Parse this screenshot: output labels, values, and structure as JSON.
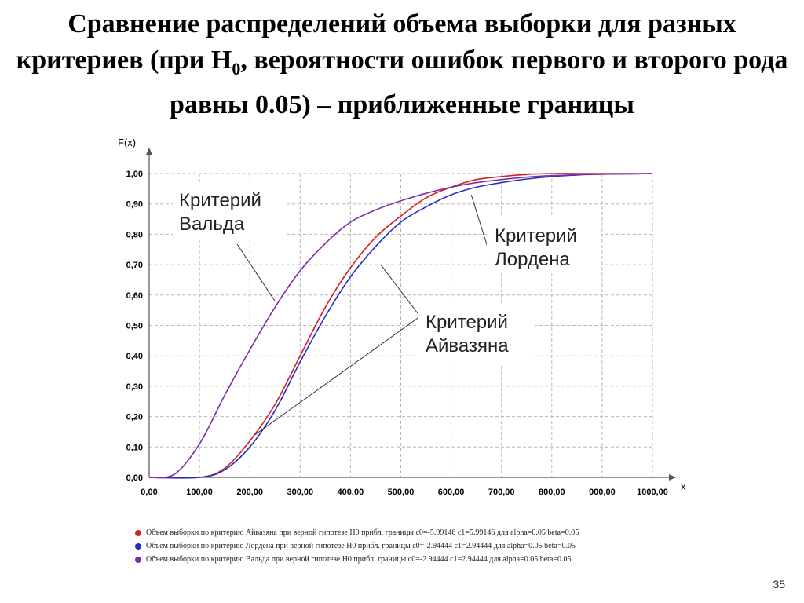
{
  "slide": {
    "title_part1": "Сравнение распределений объема выборки для разных критериев (при H",
    "title_sub": "0",
    "title_part2": ", вероятности ошибок первого и второго рода равны 0.05) – приближенные границы",
    "page_number": "35"
  },
  "chart_data": {
    "type": "line",
    "ylabel": "F(x)",
    "xlabel": "x",
    "xlim": [
      0,
      1000
    ],
    "ylim": [
      0,
      1
    ],
    "grid": true,
    "x_ticks": [
      "0,00",
      "100,00",
      "200,00",
      "300,00",
      "400,00",
      "500,00",
      "600,00",
      "700,00",
      "800,00",
      "900,00",
      "1000,00"
    ],
    "y_ticks": [
      "0,00",
      "0,10",
      "0,20",
      "0,30",
      "0,40",
      "0,50",
      "0,60",
      "0,70",
      "0,80",
      "0,90",
      "1,00"
    ],
    "series": [
      {
        "name": "Объем выборки по критерию Айвазяна при верной гипотезе H0  прибл. границы  c0=-5.99146 c1=5.99146 для  alpha=0.05 beta=0.05",
        "color": "#d62020",
        "x": [
          0,
          100,
          150,
          200,
          250,
          300,
          350,
          400,
          450,
          500,
          550,
          600,
          650,
          700,
          750,
          800,
          850,
          900,
          950,
          1000
        ],
        "y": [
          0,
          0.0,
          0.03,
          0.12,
          0.24,
          0.4,
          0.56,
          0.69,
          0.79,
          0.86,
          0.92,
          0.955,
          0.98,
          0.99,
          0.997,
          1.0,
          1.0,
          1.0,
          1.0,
          1.0
        ]
      },
      {
        "name": "Объем выборки по критерию Лордена при верной гипотезе H0  прибл. границы  c0=-2.94444 c1=2.94444 для  alpha=0.05 beta=0.05",
        "color": "#2030c0",
        "x": [
          0,
          100,
          150,
          200,
          250,
          300,
          350,
          400,
          450,
          500,
          550,
          600,
          650,
          700,
          750,
          800,
          850,
          900,
          950,
          1000
        ],
        "y": [
          0,
          0.0,
          0.025,
          0.1,
          0.22,
          0.38,
          0.53,
          0.66,
          0.76,
          0.84,
          0.89,
          0.93,
          0.955,
          0.97,
          0.982,
          0.99,
          0.995,
          0.998,
          0.999,
          1.0
        ]
      },
      {
        "name": "Объем выборки по критерию Вальда при верной гипотезе H0  прибл. границы  c0=-2.94444 c1=2.94444 для  alpha=0.05 beta=0.05",
        "color": "#7b2fa8",
        "x": [
          0,
          50,
          100,
          150,
          200,
          250,
          300,
          350,
          400,
          450,
          500,
          550,
          600,
          650,
          700,
          750,
          800,
          850,
          900,
          950,
          1000
        ],
        "y": [
          0,
          0.01,
          0.11,
          0.27,
          0.42,
          0.56,
          0.68,
          0.77,
          0.84,
          0.88,
          0.91,
          0.935,
          0.955,
          0.97,
          0.98,
          0.988,
          0.993,
          0.996,
          0.998,
          0.999,
          1.0
        ]
      }
    ],
    "annotations": [
      {
        "text1": "Критерий",
        "text2": "Вальда"
      },
      {
        "text1": "Критерий",
        "text2": "Лордена"
      },
      {
        "text1": "Критерий",
        "text2": "Айвазяна"
      }
    ]
  }
}
